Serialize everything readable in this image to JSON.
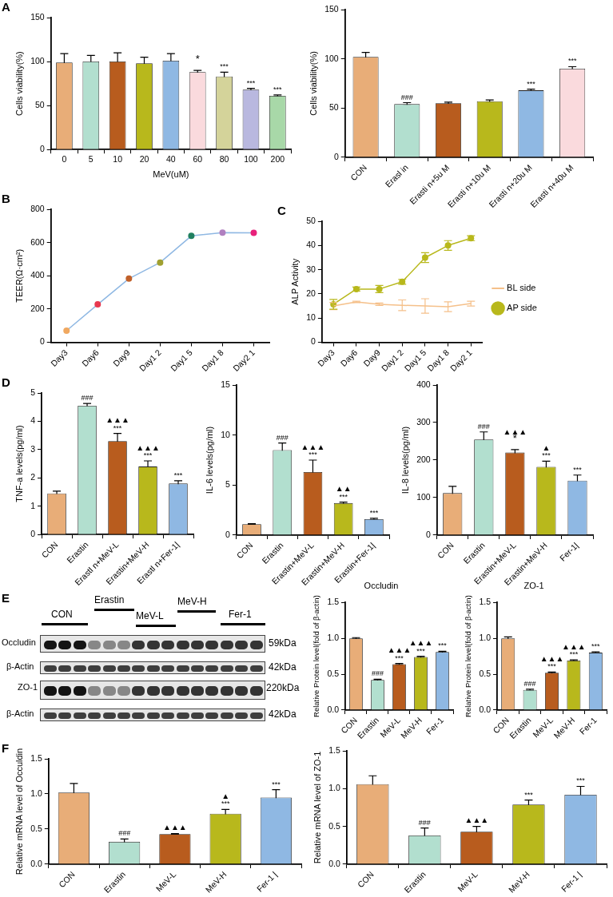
{
  "chart_data": [
    {
      "type": "bar",
      "annotations": [
        "A",
        {
          "text": "*",
          "x": "60",
          "y": 88
        },
        {
          "text": "***",
          "x": "80",
          "y": 83
        },
        {
          "text": "***",
          "x": "100",
          "y": 68
        },
        {
          "text": "***",
          "x": "200",
          "y": 61
        }
      ],
      "xlabel": "MeV(uM)",
      "ylabel": "Cells viability(%)",
      "categories": [
        "0",
        "5",
        "10",
        "20",
        "40",
        "60",
        "80",
        "100",
        "200"
      ],
      "values": [
        99,
        100,
        100,
        98,
        101,
        88,
        83,
        68,
        61
      ],
      "errors": [
        10,
        7,
        10,
        7,
        8,
        2,
        5,
        1.5,
        1
      ],
      "colors": [
        "#e8ad78",
        "#b2dfcf",
        "#b85c1e",
        "#b8b81c",
        "#8fb8e3",
        "#fadadd",
        "#d4d39a",
        "#b9b8df",
        "#a8d8a8"
      ],
      "ylim": [
        0,
        150
      ],
      "yticks": [
        0,
        50,
        100,
        150
      ]
    },
    {
      "type": "bar",
      "annotations": [
        {
          "text": "###",
          "x": "Erasl in",
          "y": 54
        },
        {
          "text": "***",
          "x": "Erasti n+20u M",
          "y": 68
        },
        {
          "text": "***",
          "x": "Erasti n+40u M",
          "y": 90
        }
      ],
      "ylabel": "Cells viability(%)",
      "categories": [
        "CON",
        "Erasl in",
        "Erasti n+5u M",
        "Erasti n+10u M",
        "Erasti n+20u M",
        "Erasti n+40u M"
      ],
      "values": [
        102,
        54,
        55,
        57,
        68,
        90
      ],
      "errors": [
        4.5,
        1.5,
        1,
        1.2,
        1.2,
        2
      ],
      "colors": [
        "#e8ad78",
        "#b2dfcf",
        "#b85c1e",
        "#b8b81c",
        "#8fb8e3",
        "#fadadd"
      ],
      "ylim": [
        0,
        150
      ],
      "yticks": [
        0,
        50,
        100,
        150
      ]
    },
    {
      "type": "line",
      "annotations": [
        "B"
      ],
      "ylabel": "TEER(Ω·cm²)",
      "categories": [
        "Day3",
        "Day6",
        "Day9",
        "Day1 2",
        "Day1 5",
        "Day1 8",
        "Day2 1"
      ],
      "series": [
        {
          "color": "#8fb8e3",
          "values": [
            70,
            228,
            383,
            480,
            640,
            660,
            658
          ]
        }
      ],
      "colors": [
        "#f0a860",
        "#e8384f",
        "#c0602a",
        "#a0a030",
        "#208060",
        "#b080c0",
        "#e8207a"
      ],
      "marker": "circle",
      "ylim": [
        0,
        800
      ],
      "yticks": [
        0,
        200,
        400,
        600,
        800
      ]
    },
    {
      "type": "line",
      "annotations": [
        "C"
      ],
      "ylabel": "ALP Activity",
      "categories": [
        "Day3",
        "Day6",
        "Day9",
        "Day1 2",
        "Day1 5",
        "Day1 8",
        "Day2 1"
      ],
      "series": [
        {
          "name": "BL side",
          "color": "#f5c08a",
          "values": [
            15,
            16.7,
            15.7,
            15.3,
            15,
            14.7,
            16
          ],
          "errors": [
            1.5,
            0.3,
            0.5,
            2.2,
            3,
            2,
            1
          ]
        },
        {
          "name": "AP side",
          "color": "#b8b81c",
          "marker": "circle",
          "values": [
            15.7,
            22,
            22,
            25,
            35,
            40,
            43
          ],
          "errors": [
            2,
            0.8,
            1.5,
            1,
            2,
            2,
            1
          ]
        }
      ],
      "legend": "right",
      "ylim": [
        0,
        50
      ],
      "yticks": [
        0,
        10,
        20,
        30,
        40,
        50
      ]
    },
    {
      "type": "bar",
      "annotations": [
        "D",
        {
          "text": "###",
          "x": "Erastin",
          "y": 4.55
        },
        {
          "text": "***",
          "x": "Erastl n+MeV-L",
          "y": 3.3
        },
        {
          "text": "▲▲▲",
          "x": "Erastl n+MeV-L",
          "y": 3.3
        },
        {
          "text": "***",
          "x": "Erastin+MeV-H",
          "y": 2.4
        },
        {
          "text": "▲▲▲",
          "x": "Erastin+MeV-H",
          "y": 2.4
        },
        {
          "text": "***",
          "x": "Erastl n+Fer-1|",
          "y": 1.8
        }
      ],
      "ylabel": "TNF-a levels(pg/ml)",
      "categories": [
        "CON",
        "Erastin",
        "Erastl n+MeV-L",
        "Erastin+MeV-H",
        "Erastl n+Fer-1|"
      ],
      "values": [
        1.45,
        4.55,
        3.3,
        2.4,
        1.8
      ],
      "errors": [
        0.08,
        0.08,
        0.27,
        0.2,
        0.1
      ],
      "colors": [
        "#e8ad78",
        "#b2dfcf",
        "#b85c1e",
        "#b8b81c",
        "#8fb8e3"
      ],
      "ylim": [
        0,
        5
      ],
      "yticks": [
        0,
        1,
        2,
        3,
        4,
        5
      ]
    },
    {
      "type": "bar",
      "annotations": [
        {
          "text": "###",
          "x": "Erastin",
          "y": 8.5
        },
        {
          "text": "***",
          "x": "Erastin+MeV-L",
          "y": 6.3
        },
        {
          "text": "▲▲▲",
          "x": "Erastin+MeV-L",
          "y": 6.3
        },
        {
          "text": "***",
          "x": "Erastin+MeV-H",
          "y": 3.2
        },
        {
          "text": "▲▲",
          "x": "Erastin+MeV-H",
          "y": 3.2
        },
        {
          "text": "***",
          "x": "Erastin+Fer-1|",
          "y": 1.6
        }
      ],
      "ylabel": "IL-6 levels(pg/ml)",
      "categories": [
        "CON",
        "Erastin",
        "Erastin+MeV-L",
        "Erastin+MeV-H",
        "Erastin+Fer-1|"
      ],
      "values": [
        1.1,
        8.5,
        6.3,
        3.2,
        1.6
      ],
      "errors": [
        0.05,
        0.7,
        1.2,
        0.1,
        0.08
      ],
      "colors": [
        "#e8ad78",
        "#b2dfcf",
        "#b85c1e",
        "#b8b81c",
        "#8fb8e3"
      ],
      "ylim": [
        0,
        15
      ],
      "yticks": [
        0,
        5,
        10,
        15
      ]
    },
    {
      "type": "bar",
      "annotations": [
        {
          "text": "###",
          "x": "Erastin",
          "y": 255
        },
        {
          "text": "*",
          "x": "Erastin+MeV-L",
          "y": 220
        },
        {
          "text": "▲▲▲",
          "x": "Erastin+MeV-L",
          "y": 220
        },
        {
          "text": "***",
          "x": "Erastin+MeV-H",
          "y": 182
        },
        {
          "text": "▲",
          "x": "Erastin+MeV-H",
          "y": 182
        },
        {
          "text": "***",
          "x": "Fer-1|",
          "y": 145
        }
      ],
      "ylabel": "IL-8 levels(pg/ml)",
      "categories": [
        "CON",
        "Erastin",
        "Erastin+MeV-L",
        "Erastin+MeV-H",
        "Fer-1|"
      ],
      "values": [
        112,
        255,
        220,
        182,
        145
      ],
      "errors": [
        18,
        20,
        8,
        15,
        15
      ],
      "colors": [
        "#e8ad78",
        "#b2dfcf",
        "#b85c1e",
        "#b8b81c",
        "#8fb8e3"
      ],
      "ylim": [
        0,
        400
      ],
      "yticks": [
        0,
        100,
        200,
        300,
        400
      ]
    },
    {
      "type": "other",
      "annotations": [
        "E",
        "CON",
        "Erastin",
        "MeV-L",
        "MeV-H",
        "Fer-1",
        "Occludin",
        "β-Actin",
        "ZO-1",
        "β-Actin",
        "59kDa",
        "42kDa",
        "220kDa",
        "42kDa"
      ]
    },
    {
      "type": "bar",
      "title": "Occludin",
      "annotations": [
        {
          "text": "###",
          "x": "Erastin",
          "y": 0.42
        },
        {
          "text": "***",
          "x": "MeV-L",
          "y": 0.64
        },
        {
          "text": "▲▲▲",
          "x": "MeV-L",
          "y": 0.64
        },
        {
          "text": "***",
          "x": "MeV-H",
          "y": 0.74
        },
        {
          "text": "▲▲▲",
          "x": "MeV-H",
          "y": 0.74
        },
        {
          "text": "***",
          "x": "Fer-1",
          "y": 0.81
        }
      ],
      "ylabel": "Relative Protein level(fold of β-actin)",
      "categories": [
        "CON",
        "Erastin",
        "MeV-L",
        "MeV-H",
        "Fer-1"
      ],
      "values": [
        1.0,
        0.42,
        0.64,
        0.74,
        0.81
      ],
      "errors": [
        0.01,
        0.01,
        0.01,
        0.01,
        0.01
      ],
      "colors": [
        "#e8ad78",
        "#b2dfcf",
        "#b85c1e",
        "#b8b81c",
        "#8fb8e3"
      ],
      "ylim": [
        0,
        1.5
      ],
      "yticks": [
        {
          "value": 0,
          "label": "0.0"
        },
        {
          "value": 0.5,
          "label": "0.5"
        },
        {
          "value": 1,
          "label": "1.0"
        },
        {
          "value": 1.5,
          "label": "1.5"
        }
      ]
    },
    {
      "type": "bar",
      "title": "ZO-1",
      "annotations": [
        {
          "text": "###",
          "x": "Erastin",
          "y": 0.28
        },
        {
          "text": "***",
          "x": "MeV-L",
          "y": 0.52
        },
        {
          "text": "▲▲▲",
          "x": "MeV-L",
          "y": 0.52
        },
        {
          "text": "***",
          "x": "MeV-H",
          "y": 0.69
        },
        {
          "text": "▲▲▲",
          "x": "MeV-H",
          "y": 0.69
        },
        {
          "text": "***",
          "x": "Fer-1",
          "y": 0.8
        }
      ],
      "ylabel": "Relative Protein level(fold of β-actin)",
      "categories": [
        "CON",
        "Erastin",
        "MeV-L",
        "MeV-H",
        "Fer-1"
      ],
      "values": [
        1.0,
        0.28,
        0.52,
        0.69,
        0.8
      ],
      "errors": [
        0.02,
        0.01,
        0.01,
        0.01,
        0.01
      ],
      "colors": [
        "#e8ad78",
        "#b2dfcf",
        "#b85c1e",
        "#b8b81c",
        "#8fb8e3"
      ],
      "ylim": [
        0,
        1.5
      ],
      "yticks": [
        {
          "value": 0,
          "label": "0.0"
        },
        {
          "value": 0.5,
          "label": "0.5"
        },
        {
          "value": 1,
          "label": "1.0"
        },
        {
          "value": 1.5,
          "label": "1.5"
        }
      ]
    },
    {
      "type": "bar",
      "annotations": [
        "F",
        {
          "text": "###",
          "x": "Erastin",
          "y": 0.32
        },
        {
          "text": "▲▲▲",
          "x": "MeV-L",
          "y": 0.43
        },
        {
          "text": "***",
          "x": "MeV-H",
          "y": 0.72
        },
        {
          "text": "▲",
          "x": "MeV-H",
          "y": 0.72
        },
        {
          "text": "***",
          "x": "Fer-1 |",
          "y": 0.95
        }
      ],
      "ylabel": "Relative mRNA level of Occuldin",
      "categories": [
        "CON",
        "Erastin",
        "MeV-L",
        "MeV-H",
        "Fer-1 |"
      ],
      "values": [
        1.02,
        0.32,
        0.43,
        0.72,
        0.95
      ],
      "errors": [
        0.13,
        0.04,
        0.005,
        0.06,
        0.11
      ],
      "colors": [
        "#e8ad78",
        "#b2dfcf",
        "#b85c1e",
        "#b8b81c",
        "#8fb8e3"
      ],
      "ylim": [
        0,
        1.5
      ],
      "yticks": [
        {
          "value": 0,
          "label": "0.0"
        },
        {
          "value": 0.5,
          "label": "0.5"
        },
        {
          "value": 1,
          "label": "1.0"
        },
        {
          "value": 1.5,
          "label": "1.5"
        }
      ]
    },
    {
      "type": "bar",
      "annotations": [
        {
          "text": "###",
          "x": "Erastin",
          "y": 0.38
        },
        {
          "text": "▲▲▲",
          "x": "MeV-L",
          "y": 0.43
        },
        {
          "text": "***",
          "x": "MeV-H",
          "y": 0.79
        },
        {
          "text": "***",
          "x": "Fer-1 |",
          "y": 0.92
        }
      ],
      "ylabel": "Relative mRNA level of ZO-1",
      "categories": [
        "CON",
        "Erastin",
        "MeV-L",
        "MeV-H",
        "Fer-1 |"
      ],
      "values": [
        1.06,
        0.38,
        0.43,
        0.79,
        0.92
      ],
      "errors": [
        0.11,
        0.1,
        0.07,
        0.06,
        0.11
      ],
      "colors": [
        "#e8ad78",
        "#b2dfcf",
        "#b85c1e",
        "#b8b81c",
        "#8fb8e3"
      ],
      "ylim": [
        0,
        1.5
      ],
      "yticks": [
        {
          "value": 0,
          "label": "0.0"
        },
        {
          "value": 0.5,
          "label": "0.5"
        },
        {
          "value": 1,
          "label": "1.0"
        },
        {
          "value": 1.5,
          "label": "1.5"
        }
      ]
    }
  ]
}
